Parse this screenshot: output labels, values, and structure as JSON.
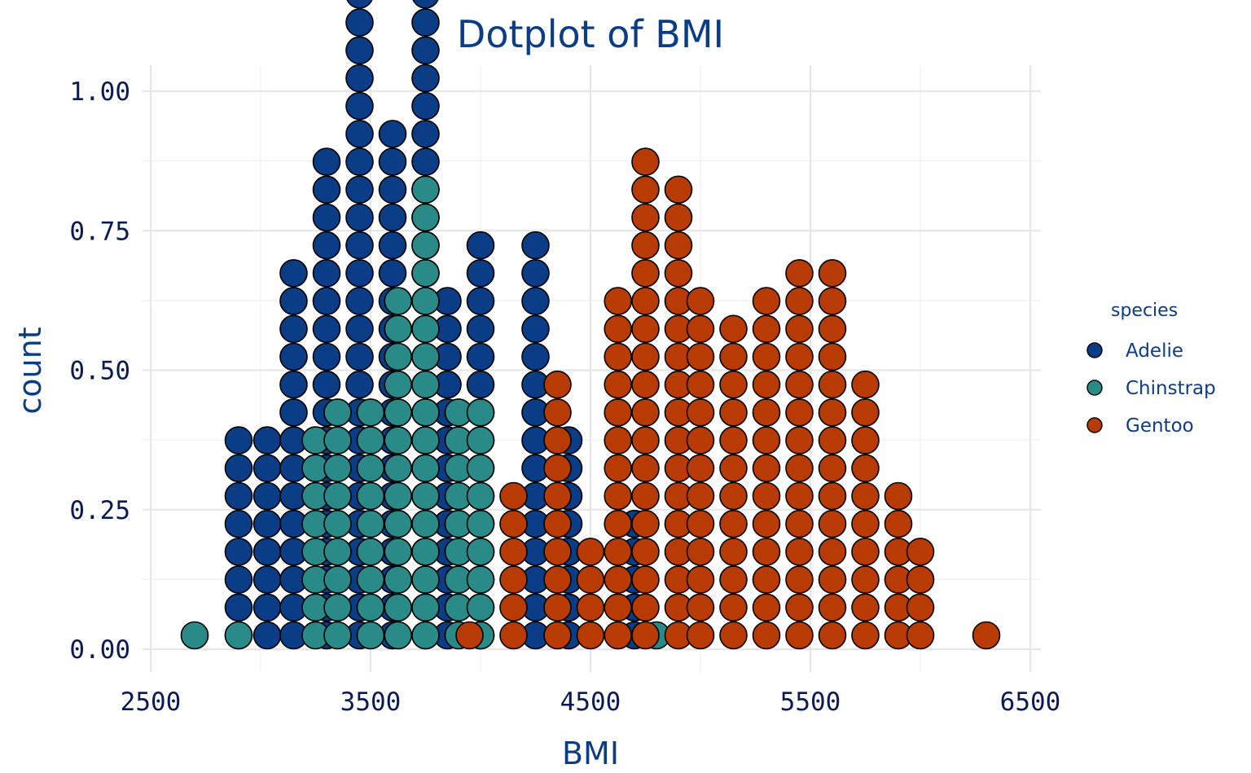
{
  "chart_data": {
    "type": "dotplot",
    "title": "Dotplot of BMI",
    "xlabel": "BMI",
    "ylabel": "count",
    "xlim": [
      2500,
      6500
    ],
    "ylim": [
      0,
      1
    ],
    "x_ticks": [
      "2500",
      "3500",
      "4500",
      "5500",
      "6500"
    ],
    "y_ticks": [
      "0.00",
      "0.25",
      "0.50",
      "0.75",
      "1.00"
    ],
    "grid": true,
    "legend_title": "species",
    "legend_position": "right",
    "series": [
      {
        "name": "Adelie",
        "color": "#0b3d86",
        "stacks": [
          [
            2900,
            8
          ],
          [
            3030,
            8
          ],
          [
            3150,
            14
          ],
          [
            3300,
            18
          ],
          [
            3450,
            26
          ],
          [
            3600,
            19
          ],
          [
            3750,
            29
          ],
          [
            3850,
            13
          ],
          [
            4000,
            15
          ],
          [
            4250,
            15
          ],
          [
            4400,
            8
          ],
          [
            4700,
            5
          ]
        ]
      },
      {
        "name": "Chinstrap",
        "color": "#2a8a87",
        "stacks": [
          [
            2700,
            1
          ],
          [
            2900,
            1
          ],
          [
            3250,
            8
          ],
          [
            3350,
            9
          ],
          [
            3500,
            9
          ],
          [
            3625,
            13
          ],
          [
            3750,
            17
          ],
          [
            3900,
            9
          ],
          [
            4000,
            9
          ],
          [
            4800,
            1
          ]
        ]
      },
      {
        "name": "Gentoo",
        "color": "#b83a05",
        "stacks": [
          [
            3950,
            1
          ],
          [
            4150,
            6
          ],
          [
            4350,
            10
          ],
          [
            4500,
            4
          ],
          [
            4625,
            13
          ],
          [
            4750,
            18
          ],
          [
            4900,
            17
          ],
          [
            5000,
            13
          ],
          [
            5150,
            12
          ],
          [
            5300,
            13
          ],
          [
            5450,
            14
          ],
          [
            5600,
            14
          ],
          [
            5750,
            10
          ],
          [
            5900,
            6
          ],
          [
            6000,
            4
          ],
          [
            6300,
            1
          ]
        ]
      }
    ]
  }
}
